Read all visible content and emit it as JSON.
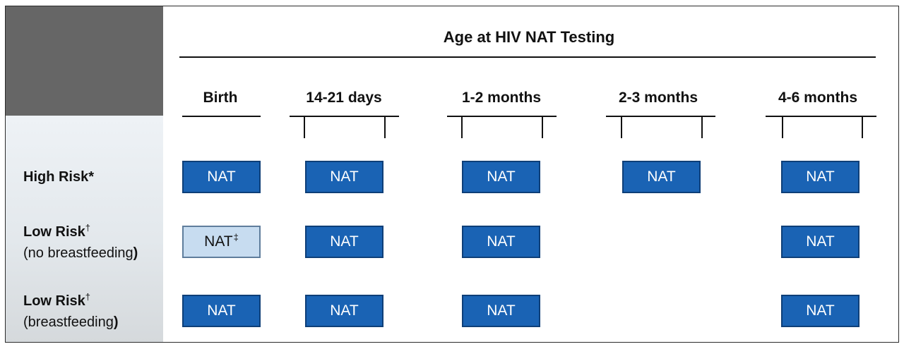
{
  "header": {
    "title": "Age at HIV NAT Testing"
  },
  "columns": [
    "Birth",
    "14-21 days",
    "1-2 months",
    "2-3 months",
    "4-6 months"
  ],
  "rows": [
    {
      "label": "High Risk*",
      "label_sup": "",
      "sublabel": "",
      "cells": [
        "NAT",
        "NAT",
        "NAT",
        "NAT",
        "NAT"
      ]
    },
    {
      "label": "Low Risk",
      "label_sup": "†",
      "sublabel_open": "(no breastfeeding",
      "sublabel_close": ")",
      "cells": [
        "NAT",
        "NAT",
        "NAT",
        "",
        "NAT"
      ],
      "birth_cell_sup": "‡"
    },
    {
      "label": "Low Risk",
      "label_sup": "†",
      "sublabel_open": "(breastfeeding",
      "sublabel_close": ")",
      "cells": [
        "NAT",
        "NAT",
        "NAT",
        "",
        "NAT"
      ]
    }
  ],
  "colors": {
    "nat_fill": "#1a63b4",
    "nat_optional_fill": "#c7dcf0",
    "corner": "#666666",
    "row_header_bg": "#e3e8ec"
  }
}
